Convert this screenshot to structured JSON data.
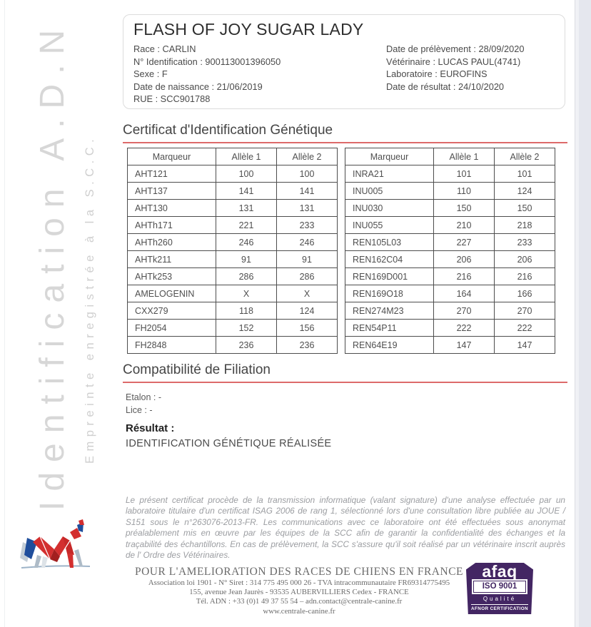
{
  "sidebar": {
    "vertical_title": "Identification A.D.N",
    "vertical_subtitle": "Empreinte enregistrée à la S.C.C."
  },
  "header": {
    "title": "FLASH OF JOY SUGAR LADY",
    "left_fields": [
      {
        "label": "Race",
        "value": "CARLIN"
      },
      {
        "label": "N° Identification",
        "value": "900113001396050"
      },
      {
        "label": "Sexe",
        "value": "F"
      },
      {
        "label": "Date de naissance",
        "value": "21/06/2019"
      },
      {
        "label": "RUE",
        "value": "SCC901788"
      }
    ],
    "right_fields": [
      {
        "label": "Date de prélèvement",
        "value": "28/09/2020"
      },
      {
        "label": "Vétérinaire",
        "value": "LUCAS PAUL(4741)"
      },
      {
        "label": "Laboratoire",
        "value": "EUROFINS"
      },
      {
        "label": "Date de résultat",
        "value": "24/10/2020"
      }
    ]
  },
  "sections": {
    "certificate_title": "Certificat d'Identification Génétique",
    "filiation_title": "Compatibilité de Filiation"
  },
  "genetic_tables": [
    {
      "side": "left",
      "headers": [
        "Marqueur",
        "Allèle 1",
        "Allèle 2"
      ],
      "rows": [
        [
          "AHT121",
          "100",
          "100"
        ],
        [
          "AHT137",
          "141",
          "141"
        ],
        [
          "AHT130",
          "131",
          "131"
        ],
        [
          "AHTh171",
          "221",
          "233"
        ],
        [
          "AHTh260",
          "246",
          "246"
        ],
        [
          "AHTk211",
          "91",
          "91"
        ],
        [
          "AHTk253",
          "286",
          "286"
        ],
        [
          "AMELOGENIN",
          "X",
          "X"
        ],
        [
          "CXX279",
          "118",
          "124"
        ],
        [
          "FH2054",
          "152",
          "156"
        ],
        [
          "FH2848",
          "236",
          "236"
        ]
      ]
    },
    {
      "side": "right",
      "headers": [
        "Marqueur",
        "Allèle 1",
        "Allèle 2"
      ],
      "rows": [
        [
          "INRA21",
          "101",
          "101"
        ],
        [
          "INU005",
          "110",
          "124"
        ],
        [
          "INU030",
          "150",
          "150"
        ],
        [
          "INU055",
          "210",
          "218"
        ],
        [
          "REN105L03",
          "227",
          "233"
        ],
        [
          "REN162C04",
          "206",
          "206"
        ],
        [
          "REN169D001",
          "216",
          "216"
        ],
        [
          "REN169O18",
          "164",
          "166"
        ],
        [
          "REN274M23",
          "270",
          "270"
        ],
        [
          "REN54P11",
          "222",
          "222"
        ],
        [
          "REN64E19",
          "147",
          "147"
        ]
      ]
    }
  ],
  "filiation": {
    "fields": [
      {
        "label": "Etalon",
        "value": "-"
      },
      {
        "label": "Lice",
        "value": "-"
      }
    ]
  },
  "result": {
    "label": "Résultat :",
    "value": "IDENTIFICATION GÉNÉTIQUE RÉALISÉE"
  },
  "legal_text": "Le présent certificat procède de la transmission informatique (valant signature) d'une analyse effectuée par un laboratoire titulaire d'un certificat ISAG 2006 de rang 1, sélectionné lors d'une consultation libre publiée au JOUE / S151 sous le n°263076-2013-FR. Les communications avec ce laboratoire ont été effectuées sous anonymat préalablement mis en œuvre par les équipes de la SCC afin de garantir la confidentialité des échanges et la traçabilité des échantillons. En cas de prélèvement, la SCC s'assure qu'il soit réalisé par un vétérinaire inscrit auprès de l' Ordre des Vétérinaires.",
  "footer": {
    "lines": [
      "POUR L'AMELIORATION DES RACES DE CHIENS EN FRANCE",
      "Association loi 1901 - N° Siret : 314 775 495 000 26 - TVA intracommunautaire FR69314775495",
      "155, avenue Jean Jaurès - 93535 AUBERVILLIERS Cedex - FRANCE",
      "Tél. ADN : +33 (0)1 49 37 55 54 – adn.contact@centrale-canine.fr",
      "www.centrale-canine.fr"
    ]
  },
  "afaq": {
    "brand": "afaq",
    "iso": "ISO 9001",
    "quality": "Qualité",
    "afnor": "AFNOR CERTIFICATION"
  },
  "colors": {
    "accent_red": "#dd6a6a",
    "afaq_purple": "#432663",
    "sidebar_gray": "#d7d7d7"
  }
}
